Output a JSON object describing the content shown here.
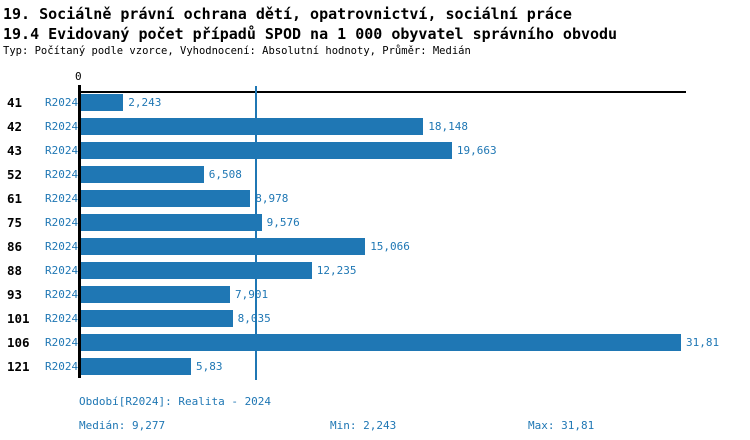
{
  "header": {
    "title_line1": "19. Sociálně právní ochrana dětí, opatrovnictví, sociální práce",
    "title_line2": "19.4 Evidovaný počet případů SPOD na 1 000 obyvatel správního obvodu",
    "subtitle": "Typ: Počítaný podle vzorce, Vyhodnocení: Absolutní hodnoty, Průměr: Medián"
  },
  "chart_data": {
    "type": "bar",
    "orientation": "horizontal",
    "title": "19.4 Evidovaný počet případů SPOD na 1 000 obyvatel správního obvodu",
    "categories": [
      "41",
      "42",
      "43",
      "52",
      "61",
      "75",
      "86",
      "88",
      "93",
      "101",
      "106",
      "121"
    ],
    "series": [
      {
        "name": "R2024",
        "values": [
          2.243,
          18.148,
          19.663,
          6.508,
          8.978,
          9.576,
          15.066,
          12.235,
          7.901,
          8.035,
          31.81,
          5.83
        ],
        "value_labels": [
          "2,243",
          "18,148",
          "19,663",
          "6,508",
          "8,978",
          "9,576",
          "15,066",
          "12,235",
          "7,901",
          "8,035",
          "31,81",
          "5,83"
        ]
      }
    ],
    "xlim": [
      0,
      31.81
    ],
    "x_axis_zero_label": "0",
    "median_reference_line": 9.277,
    "grid": false,
    "legend_position": "none",
    "bar_color": "#1f77b4"
  },
  "footer": {
    "period_label": "Období[R2024]: Realita - 2024",
    "median_label": "Medián: 9,277",
    "min_label": "Min: 2,243",
    "max_label": "Max: 31,81"
  },
  "colors": {
    "accent_blue": "#1f77b4",
    "text_black": "#000000",
    "background": "#ffffff"
  }
}
